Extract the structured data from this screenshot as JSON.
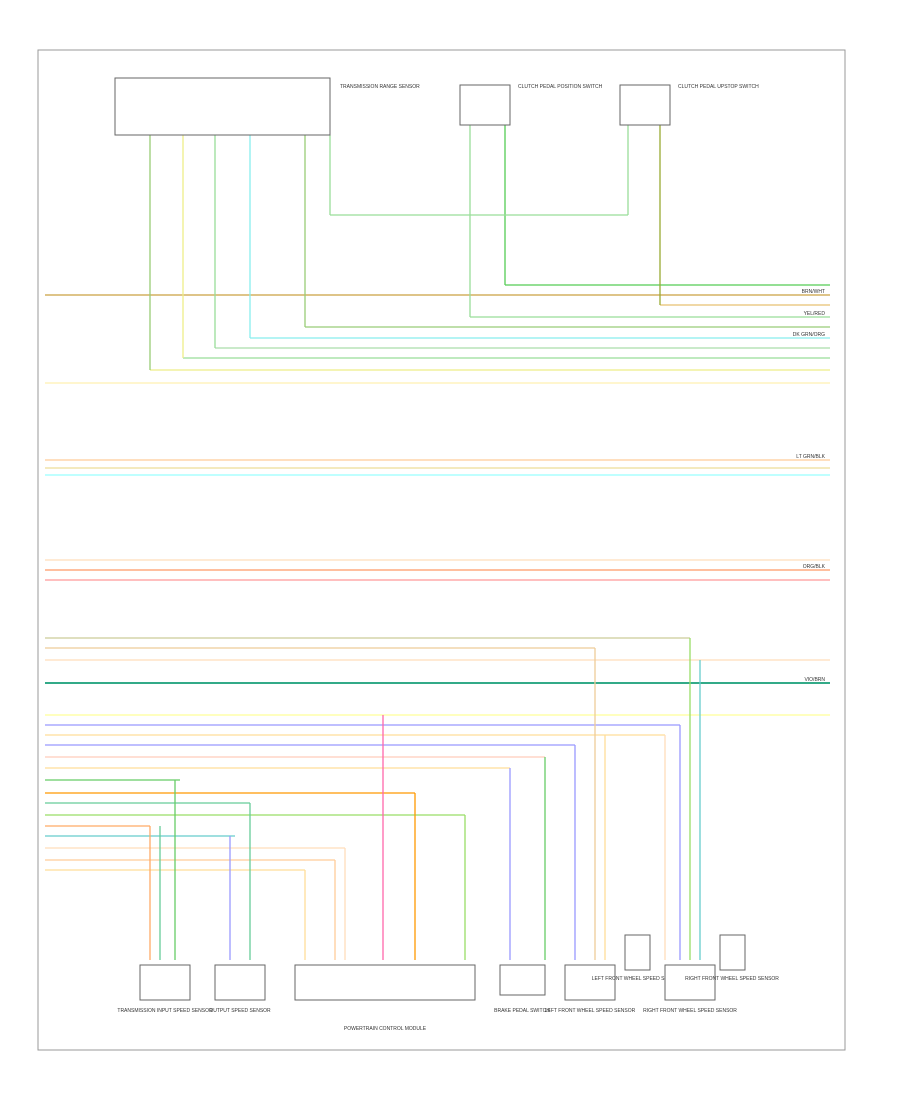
{
  "components": [
    {
      "label": "TRANSMISSION RANGE SENSOR"
    },
    {
      "label": "CLUTCH PEDAL POSITION SWITCH"
    },
    {
      "label": "CLUTCH PEDAL UPSTOP SWITCH"
    },
    {
      "label": "TRANSMISSION INPUT SPEED SENSOR"
    },
    {
      "label": "OUTPUT SPEED SENSOR"
    },
    {
      "label": "POWERTRAIN CONTROL MODULE"
    },
    {
      "label": "BRAKE PEDAL SWITCH"
    },
    {
      "label": "LEFT FRONT WHEEL SPEED SENSOR"
    },
    {
      "label": "LEFT FRONT WHEEL SPEED SENSOR"
    },
    {
      "label": "RIGHT FRONT WHEEL SPEED SENSOR"
    },
    {
      "label": "RIGHT FRONT WHEEL SPEED SENSOR"
    }
  ],
  "wire_labels": [
    "BRN/WHT",
    "YEL/RED",
    "DK GRN/ORG",
    "LT GRN/BLK",
    "ORG/BLK",
    "VIO/BRN"
  ]
}
